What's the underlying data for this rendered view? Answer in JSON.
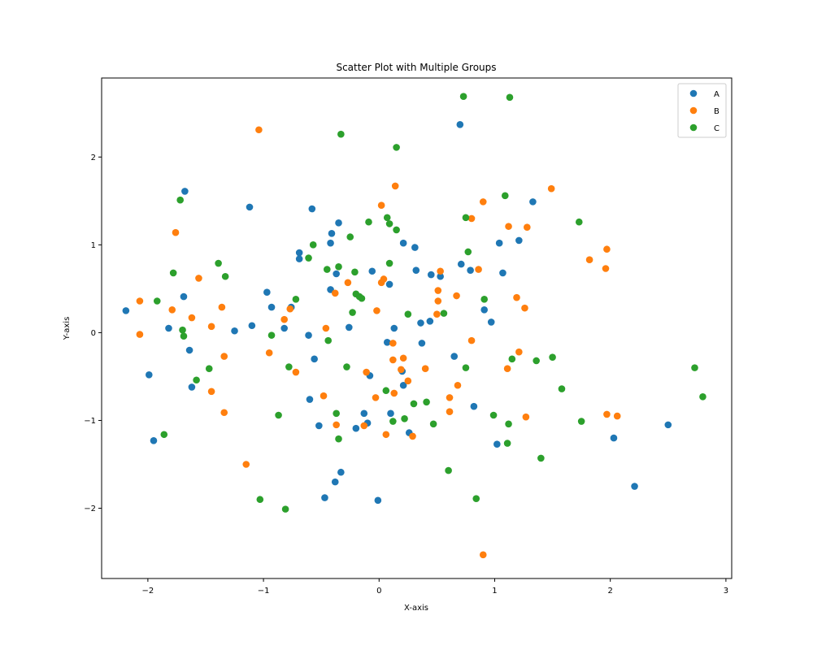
{
  "chart_data": {
    "type": "scatter",
    "title": "Scatter Plot with Multiple Groups",
    "xlabel": "X-axis",
    "ylabel": "Y-axis",
    "xlim": [
      -2.4,
      3.05
    ],
    "ylim": [
      -2.8,
      2.9
    ],
    "xticks": [
      -2,
      -1,
      0,
      1,
      2,
      3
    ],
    "xtick_labels": [
      "−2",
      "−1",
      "0",
      "1",
      "2",
      "3"
    ],
    "yticks": [
      -2,
      -1,
      0,
      1,
      2
    ],
    "ytick_labels": [
      "−2",
      "−1",
      "0",
      "1",
      "2"
    ],
    "grid": false,
    "legend": "top-right",
    "series": [
      {
        "name": "A",
        "color": "#1f77b4",
        "points": [
          [
            -2.19,
            0.25
          ],
          [
            -1.99,
            -0.48
          ],
          [
            -1.95,
            -1.23
          ],
          [
            -1.82,
            0.05
          ],
          [
            -1.69,
            0.41
          ],
          [
            -1.68,
            1.61
          ],
          [
            -1.64,
            -0.2
          ],
          [
            -1.62,
            -0.62
          ],
          [
            -1.25,
            0.02
          ],
          [
            -1.12,
            1.43
          ],
          [
            -1.1,
            0.08
          ],
          [
            -0.97,
            0.46
          ],
          [
            -0.93,
            0.29
          ],
          [
            -0.82,
            0.05
          ],
          [
            -0.76,
            0.29
          ],
          [
            -0.69,
            0.91
          ],
          [
            -0.69,
            0.84
          ],
          [
            -0.61,
            -0.03
          ],
          [
            -0.6,
            -0.76
          ],
          [
            -0.58,
            1.41
          ],
          [
            -0.56,
            -0.3
          ],
          [
            -0.52,
            -1.06
          ],
          [
            -0.47,
            -1.88
          ],
          [
            -0.42,
            0.49
          ],
          [
            -0.42,
            1.02
          ],
          [
            -0.41,
            1.13
          ],
          [
            -0.38,
            -1.7
          ],
          [
            -0.37,
            0.67
          ],
          [
            -0.35,
            1.25
          ],
          [
            -0.33,
            -1.59
          ],
          [
            -0.26,
            0.06
          ],
          [
            -0.2,
            -1.09
          ],
          [
            -0.13,
            -0.92
          ],
          [
            -0.1,
            -1.03
          ],
          [
            -0.08,
            -0.49
          ],
          [
            -0.06,
            0.7
          ],
          [
            -0.01,
            -1.91
          ],
          [
            0.07,
            -0.11
          ],
          [
            0.09,
            0.55
          ],
          [
            0.1,
            -0.92
          ],
          [
            0.13,
            0.05
          ],
          [
            0.2,
            -0.44
          ],
          [
            0.21,
            -0.6
          ],
          [
            0.21,
            1.02
          ],
          [
            0.26,
            -1.14
          ],
          [
            0.31,
            0.97
          ],
          [
            0.32,
            0.71
          ],
          [
            0.36,
            0.11
          ],
          [
            0.37,
            -0.12
          ],
          [
            0.44,
            0.13
          ],
          [
            0.45,
            0.66
          ],
          [
            0.53,
            0.64
          ],
          [
            0.65,
            -0.27
          ],
          [
            0.7,
            2.37
          ],
          [
            0.71,
            0.78
          ],
          [
            0.79,
            0.71
          ],
          [
            0.82,
            -0.84
          ],
          [
            0.91,
            0.26
          ],
          [
            0.97,
            0.12
          ],
          [
            1.02,
            -1.27
          ],
          [
            1.04,
            1.02
          ],
          [
            1.07,
            0.68
          ],
          [
            1.21,
            1.05
          ],
          [
            1.33,
            1.49
          ],
          [
            2.03,
            -1.2
          ],
          [
            2.21,
            -1.75
          ],
          [
            2.5,
            -1.05
          ]
        ]
      },
      {
        "name": "B",
        "color": "#ff7f0e",
        "points": [
          [
            -2.07,
            0.36
          ],
          [
            -2.07,
            -0.02
          ],
          [
            -1.79,
            0.26
          ],
          [
            -1.76,
            1.14
          ],
          [
            -1.62,
            0.17
          ],
          [
            -1.56,
            0.62
          ],
          [
            -1.45,
            0.07
          ],
          [
            -1.45,
            -0.67
          ],
          [
            -1.36,
            0.29
          ],
          [
            -1.34,
            -0.27
          ],
          [
            -1.34,
            -0.91
          ],
          [
            -1.15,
            -1.5
          ],
          [
            -1.04,
            2.31
          ],
          [
            -0.95,
            -0.23
          ],
          [
            -0.82,
            0.15
          ],
          [
            -0.77,
            0.27
          ],
          [
            -0.72,
            -0.45
          ],
          [
            -0.48,
            -0.72
          ],
          [
            -0.46,
            0.05
          ],
          [
            -0.38,
            0.45
          ],
          [
            -0.37,
            -1.05
          ],
          [
            -0.27,
            0.57
          ],
          [
            -0.13,
            -1.06
          ],
          [
            -0.11,
            -0.45
          ],
          [
            -0.02,
            0.25
          ],
          [
            -0.03,
            -0.74
          ],
          [
            0.02,
            0.57
          ],
          [
            0.02,
            1.45
          ],
          [
            0.04,
            0.61
          ],
          [
            0.06,
            -1.16
          ],
          [
            0.12,
            -0.31
          ],
          [
            0.12,
            -0.12
          ],
          [
            0.13,
            -0.69
          ],
          [
            0.14,
            1.67
          ],
          [
            0.19,
            -0.42
          ],
          [
            0.21,
            -0.29
          ],
          [
            0.25,
            -0.55
          ],
          [
            0.29,
            -1.18
          ],
          [
            0.4,
            -0.41
          ],
          [
            0.5,
            0.21
          ],
          [
            0.51,
            0.48
          ],
          [
            0.51,
            0.36
          ],
          [
            0.53,
            0.7
          ],
          [
            0.61,
            -0.74
          ],
          [
            0.61,
            -0.9
          ],
          [
            0.67,
            0.42
          ],
          [
            0.68,
            -0.6
          ],
          [
            0.8,
            1.3
          ],
          [
            0.8,
            -0.09
          ],
          [
            0.86,
            0.72
          ],
          [
            0.9,
            1.49
          ],
          [
            0.9,
            -2.53
          ],
          [
            1.11,
            -0.41
          ],
          [
            1.12,
            1.21
          ],
          [
            1.19,
            0.4
          ],
          [
            1.21,
            -0.22
          ],
          [
            1.26,
            0.28
          ],
          [
            1.27,
            -0.96
          ],
          [
            1.28,
            1.2
          ],
          [
            1.49,
            1.64
          ],
          [
            1.82,
            0.83
          ],
          [
            1.96,
            0.73
          ],
          [
            1.97,
            0.95
          ],
          [
            1.97,
            -0.93
          ],
          [
            2.06,
            -0.95
          ]
        ]
      },
      {
        "name": "C",
        "color": "#2ca02c",
        "points": [
          [
            -1.92,
            0.36
          ],
          [
            -1.86,
            -1.16
          ],
          [
            -1.78,
            0.68
          ],
          [
            -1.72,
            1.51
          ],
          [
            -1.7,
            0.03
          ],
          [
            -1.69,
            -0.04
          ],
          [
            -1.58,
            -0.54
          ],
          [
            -1.47,
            -0.41
          ],
          [
            -1.39,
            0.79
          ],
          [
            -1.33,
            0.64
          ],
          [
            -1.03,
            -1.9
          ],
          [
            -0.93,
            -0.03
          ],
          [
            -0.87,
            -0.94
          ],
          [
            -0.81,
            -2.01
          ],
          [
            -0.78,
            -0.39
          ],
          [
            -0.72,
            0.38
          ],
          [
            -0.61,
            0.85
          ],
          [
            -0.57,
            1.0
          ],
          [
            -0.45,
            0.72
          ],
          [
            -0.44,
            -0.09
          ],
          [
            -0.37,
            -0.92
          ],
          [
            -0.35,
            0.75
          ],
          [
            -0.35,
            -1.21
          ],
          [
            -0.33,
            2.26
          ],
          [
            -0.28,
            -0.39
          ],
          [
            -0.25,
            1.09
          ],
          [
            -0.23,
            0.23
          ],
          [
            -0.21,
            0.69
          ],
          [
            -0.2,
            0.44
          ],
          [
            -0.17,
            0.41
          ],
          [
            -0.15,
            0.39
          ],
          [
            -0.09,
            1.26
          ],
          [
            0.06,
            -0.66
          ],
          [
            0.07,
            1.31
          ],
          [
            0.09,
            1.24
          ],
          [
            0.09,
            0.79
          ],
          [
            0.12,
            -1.01
          ],
          [
            0.15,
            1.17
          ],
          [
            0.15,
            2.11
          ],
          [
            0.22,
            -0.98
          ],
          [
            0.25,
            0.21
          ],
          [
            0.3,
            -0.81
          ],
          [
            0.41,
            -0.79
          ],
          [
            0.47,
            -1.04
          ],
          [
            0.56,
            0.22
          ],
          [
            0.6,
            -1.57
          ],
          [
            0.73,
            2.69
          ],
          [
            0.75,
            1.31
          ],
          [
            0.75,
            -0.4
          ],
          [
            0.77,
            0.92
          ],
          [
            0.84,
            -1.89
          ],
          [
            0.91,
            0.38
          ],
          [
            0.99,
            -0.94
          ],
          [
            1.09,
            1.56
          ],
          [
            1.11,
            -1.26
          ],
          [
            1.12,
            -1.04
          ],
          [
            1.13,
            2.68
          ],
          [
            1.15,
            -0.3
          ],
          [
            1.36,
            -0.32
          ],
          [
            1.4,
            -1.43
          ],
          [
            1.5,
            -0.28
          ],
          [
            1.58,
            -0.64
          ],
          [
            1.73,
            1.26
          ],
          [
            1.75,
            -1.01
          ],
          [
            2.73,
            -0.4
          ],
          [
            2.8,
            -0.73
          ]
        ]
      }
    ]
  }
}
